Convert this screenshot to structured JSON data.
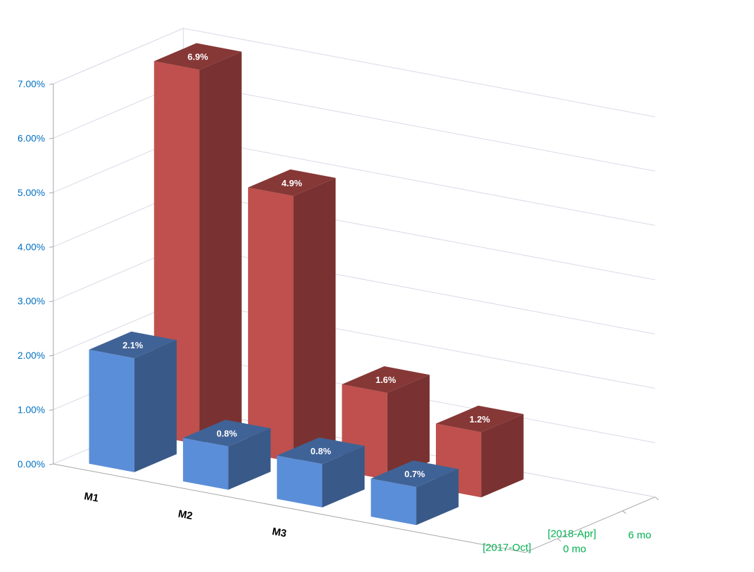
{
  "chart_data": {
    "type": "bar",
    "subtype": "3d-column",
    "title": "",
    "xlabel": "",
    "ylabel": "",
    "categories": [
      "M1",
      "M2",
      "M3",
      ""
    ],
    "y_ticks": [
      "0.00%",
      "1.00%",
      "2.00%",
      "3.00%",
      "4.00%",
      "5.00%",
      "6.00%",
      "7.00%"
    ],
    "ylim": [
      0,
      7
    ],
    "series": [
      {
        "label_date": "[2018-Apr]",
        "label_months": "6 mo",
        "color": "#5B8ED8",
        "values": [
          2.1,
          0.8,
          0.8,
          0.7
        ],
        "data_labels": [
          "2.1%",
          "0.8%",
          "0.8%",
          "0.7%"
        ]
      },
      {
        "label_date": "[2017-Oct]",
        "label_months": "0 mo",
        "color": "#C0504D",
        "values": [
          6.9,
          4.9,
          1.6,
          1.2
        ],
        "data_labels": [
          "6.9%",
          "4.9%",
          "1.6%",
          "1.2%"
        ]
      }
    ],
    "grid": true,
    "colors": {
      "tick_labels": "#0070C0",
      "series_labels": "#00B050",
      "category_labels": "#000000",
      "data_labels": "#FFFFFF",
      "gridlines": "#D9D9E8",
      "axis_lines": "#A6A6A6"
    }
  }
}
